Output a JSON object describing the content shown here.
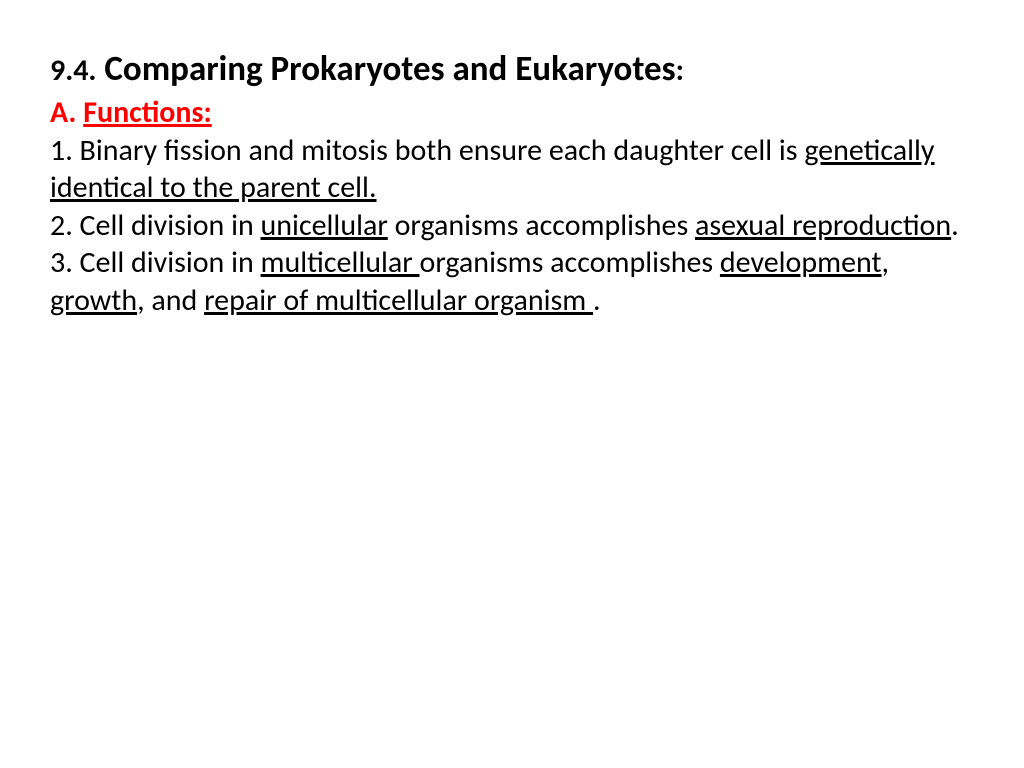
{
  "title": {
    "number": "9.4.",
    "text": "Comparing Prokaryotes and Eukaryotes",
    "colon": ":"
  },
  "section": {
    "prefix": "A. ",
    "label": "Functions:"
  },
  "point1": {
    "prefix": "1. Binary fission and mitosis both ensure each daughter cell is ",
    "underlined": "genetically identical to the parent cell."
  },
  "point2": {
    "prefix": "2. Cell division in ",
    "u1": "unicellular",
    "mid": " organisms accomplishes ",
    "u2": "asexual reproduction",
    "suffix": "."
  },
  "point3": {
    "prefix": "3. Cell division in ",
    "u1": "multicellular ",
    "mid1": "organisms accomplishes ",
    "u2": "development",
    "sep1": ", ",
    "u3": "growth",
    "sep2": ", and ",
    "u4": "repair of multicellular organism ",
    "suffix": "."
  },
  "colors": {
    "heading_red": "#ff0000",
    "text_black": "#000000",
    "background": "#ffffff"
  },
  "typography": {
    "title_fontsize": 35,
    "title_number_fontsize": 30,
    "body_fontsize": 30,
    "font_family": "Calibri"
  }
}
